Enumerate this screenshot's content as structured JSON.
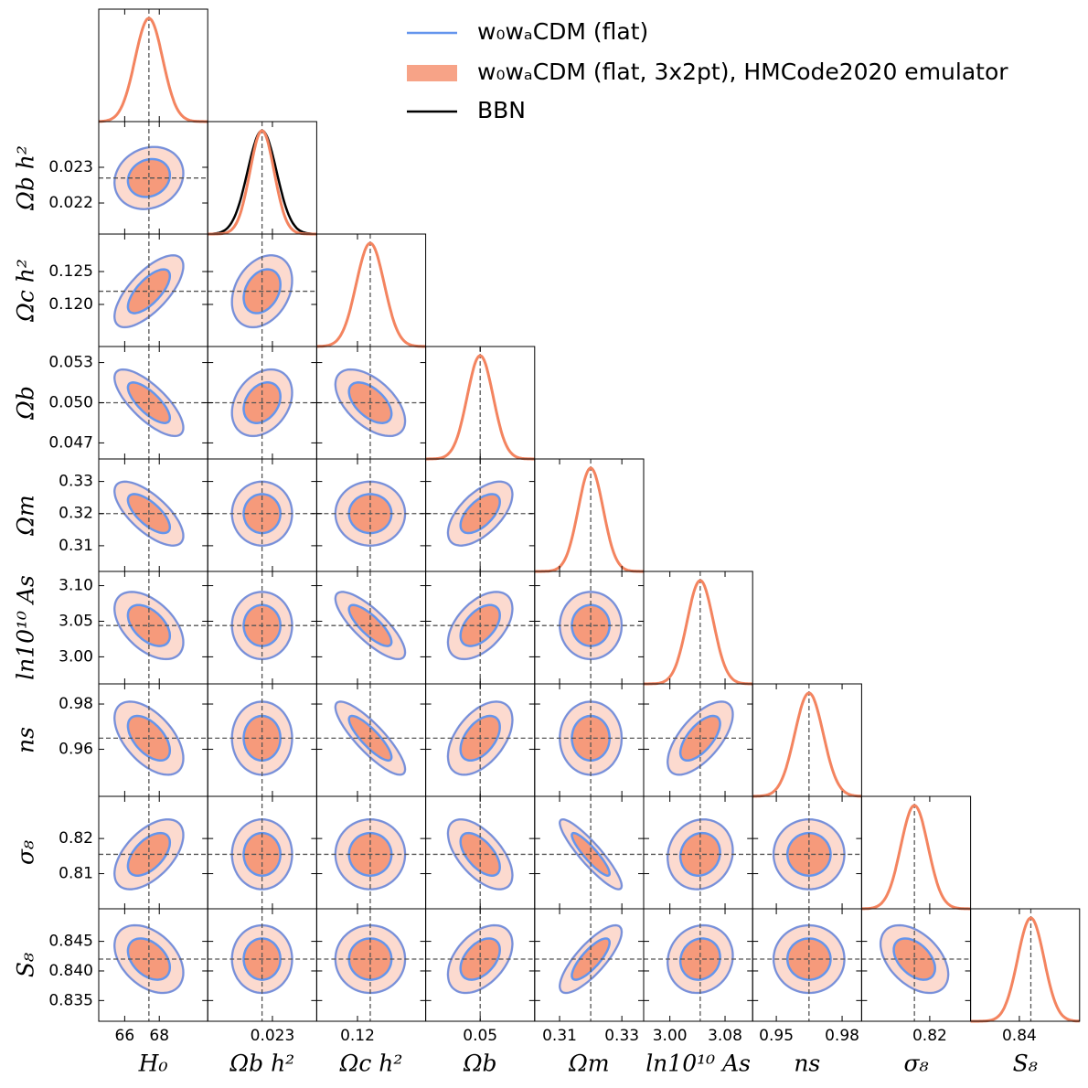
{
  "chart_data": {
    "type": "corner",
    "params": [
      {
        "label": "H₀",
        "fiducial": 67.4,
        "sigma": 0.8,
        "lim": [
          64.5,
          70.8
        ],
        "xticks": [
          66,
          68
        ]
      },
      {
        "label": "Ωb h²",
        "fiducial": 0.0227,
        "sigma": 0.00035,
        "lim": [
          0.02113,
          0.02428
        ],
        "xticks": [
          0.023
        ],
        "yticks": [
          0.022,
          0.023
        ]
      },
      {
        "label": "Ωc h²",
        "fiducial": 0.122,
        "sigma": 0.0022,
        "lim": [
          0.1136,
          0.1307
        ],
        "xticks": [
          0.12
        ],
        "yticks": [
          {
            "value": 0.12,
            "label": "0.120"
          },
          0.125
        ]
      },
      {
        "label": "Ωb",
        "fiducial": 0.05,
        "sigma": 0.001,
        "lim": [
          0.0458,
          0.0542
        ],
        "xticks": [
          0.05
        ],
        "yticks": [
          0.047,
          {
            "value": 0.05,
            "label": "0.050"
          },
          0.053
        ]
      },
      {
        "label": "Ωm",
        "fiducial": 0.32,
        "sigma": 0.004,
        "lim": [
          0.302,
          0.337
        ],
        "xticks": [
          0.31,
          0.33
        ],
        "yticks": [
          0.31,
          0.32,
          0.33
        ]
      },
      {
        "label": "ln10¹⁰ As",
        "fiducial": 3.044,
        "sigma": 0.019,
        "lim": [
          2.962,
          3.12
        ],
        "xticks": [
          {
            "value": 3,
            "label": "3.00"
          },
          3.08
        ],
        "yticks": [
          {
            "value": 3,
            "label": "3.00"
          },
          3.05,
          {
            "value": 3.1,
            "label": "3.10"
          }
        ]
      },
      {
        "label": "ns",
        "fiducial": 0.9649,
        "sigma": 0.0065,
        "lim": [
          0.9392,
          0.9889
        ],
        "xticks": [
          0.95,
          0.98
        ],
        "yticks": [
          0.96,
          0.98
        ]
      },
      {
        "label": "σ₈",
        "fiducial": 0.8155,
        "sigma": 0.004,
        "lim": [
          0.8,
          0.832
        ],
        "xticks": [
          0.82
        ],
        "yticks": [
          0.81,
          0.82
        ]
      },
      {
        "label": "S₈",
        "fiducial": 0.842,
        "sigma": 0.0023,
        "lim": [
          0.8315,
          0.8505
        ],
        "xticks": [
          0.84
        ],
        "yticks": [
          0.835,
          {
            "value": 0.84,
            "label": "0.840"
          },
          0.845
        ]
      }
    ],
    "correlations": [
      [
        0.15
      ],
      [
        0.7,
        0.3
      ],
      [
        -0.75,
        0.3,
        -0.55
      ],
      [
        -0.7,
        0,
        0,
        0.6
      ],
      [
        -0.5,
        0,
        -0.8,
        0.5,
        0
      ],
      [
        -0.55,
        0,
        -0.85,
        0.5,
        0,
        0.65
      ],
      [
        0.55,
        0,
        0,
        -0.6,
        -0.9,
        0.1,
        0
      ],
      [
        -0.4,
        0,
        0,
        0.45,
        0.8,
        0.1,
        0,
        -0.45
      ]
    ],
    "series": [
      {
        "name": "w₀wₐCDM (flat)",
        "color": "#6495ed"
      },
      {
        "name": "w₀wₐCDM (flat, 3x2pt),  HMCode2020 emulator",
        "color": "#f4845f"
      },
      {
        "name": "BBN",
        "color": "#000000",
        "param": 1,
        "mean": 0.0227,
        "sigma": 0.00042
      }
    ]
  }
}
